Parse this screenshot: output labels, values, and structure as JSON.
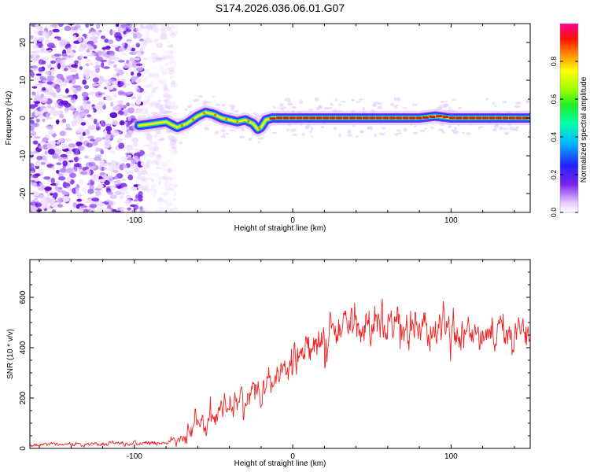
{
  "title": "S174.2026.036.06.01.G07",
  "chart_data": [
    {
      "type": "heatmap",
      "panel": "top",
      "xlabel": "Height of straight line (km)",
      "ylabel": "Frequency (Hz)",
      "xlim": [
        -166,
        150
      ],
      "ylim": [
        -25,
        25
      ],
      "xticks": [
        -100,
        0,
        100
      ],
      "yticks": [
        -20,
        -10,
        0,
        10,
        20
      ],
      "colorbar": {
        "label": "Normalized spectral amplitude",
        "range": [
          0,
          1
        ],
        "ticks": [
          0.0,
          0.2,
          0.4,
          0.6,
          0.8
        ],
        "tick_labels": [
          "0.0",
          "0.2",
          "0.4",
          "0.6",
          "0.8"
        ]
      },
      "noise_region_x": [
        -166,
        -80
      ],
      "ridge": {
        "x": [
          -97,
          -88,
          -80,
          -73,
          -67,
          -60,
          -55,
          -50,
          -45,
          -40,
          -35,
          -30,
          -25,
          -22,
          -20,
          -17,
          -13,
          0,
          20,
          40,
          45,
          60,
          80,
          90,
          100,
          120,
          130,
          150
        ],
        "freq": [
          -2.0,
          -1.5,
          -1.0,
          -2.5,
          -1.5,
          0.5,
          1.5,
          1.0,
          0.0,
          -0.5,
          -1.0,
          -0.5,
          -1.5,
          -3.0,
          -2.5,
          -0.5,
          0.0,
          0.0,
          0.0,
          0.0,
          0.0,
          0.0,
          0.0,
          0.5,
          0.0,
          0.0,
          0.0,
          0.0
        ]
      }
    },
    {
      "type": "line",
      "panel": "bottom",
      "xlabel": "Height of straight line (km)",
      "ylabel": "SNR (10 * v/v)",
      "xlim": [
        -166,
        150
      ],
      "ylim": [
        0,
        750
      ],
      "xticks": [
        -100,
        0,
        100
      ],
      "yticks": [
        0,
        200,
        400,
        600
      ],
      "series": [
        {
          "name": "SNR",
          "color": "#ee2222",
          "envelope_x": [
            -166,
            -80,
            -70,
            -65,
            -60,
            -50,
            -40,
            -30,
            -20,
            -10,
            0,
            10,
            20,
            30,
            40,
            50,
            60,
            70,
            80,
            90,
            100,
            110,
            120,
            130,
            140,
            150
          ],
          "envelope_mean": [
            15,
            20,
            40,
            70,
            90,
            130,
            170,
            210,
            250,
            290,
            330,
            380,
            450,
            470,
            480,
            490,
            500,
            490,
            480,
            470,
            470,
            460,
            460,
            460,
            450,
            460
          ],
          "envelope_spread": [
            12,
            15,
            40,
            60,
            70,
            80,
            90,
            90,
            100,
            100,
            100,
            110,
            120,
            120,
            120,
            130,
            130,
            120,
            120,
            110,
            110,
            100,
            90,
            90,
            90,
            80
          ]
        }
      ]
    }
  ]
}
